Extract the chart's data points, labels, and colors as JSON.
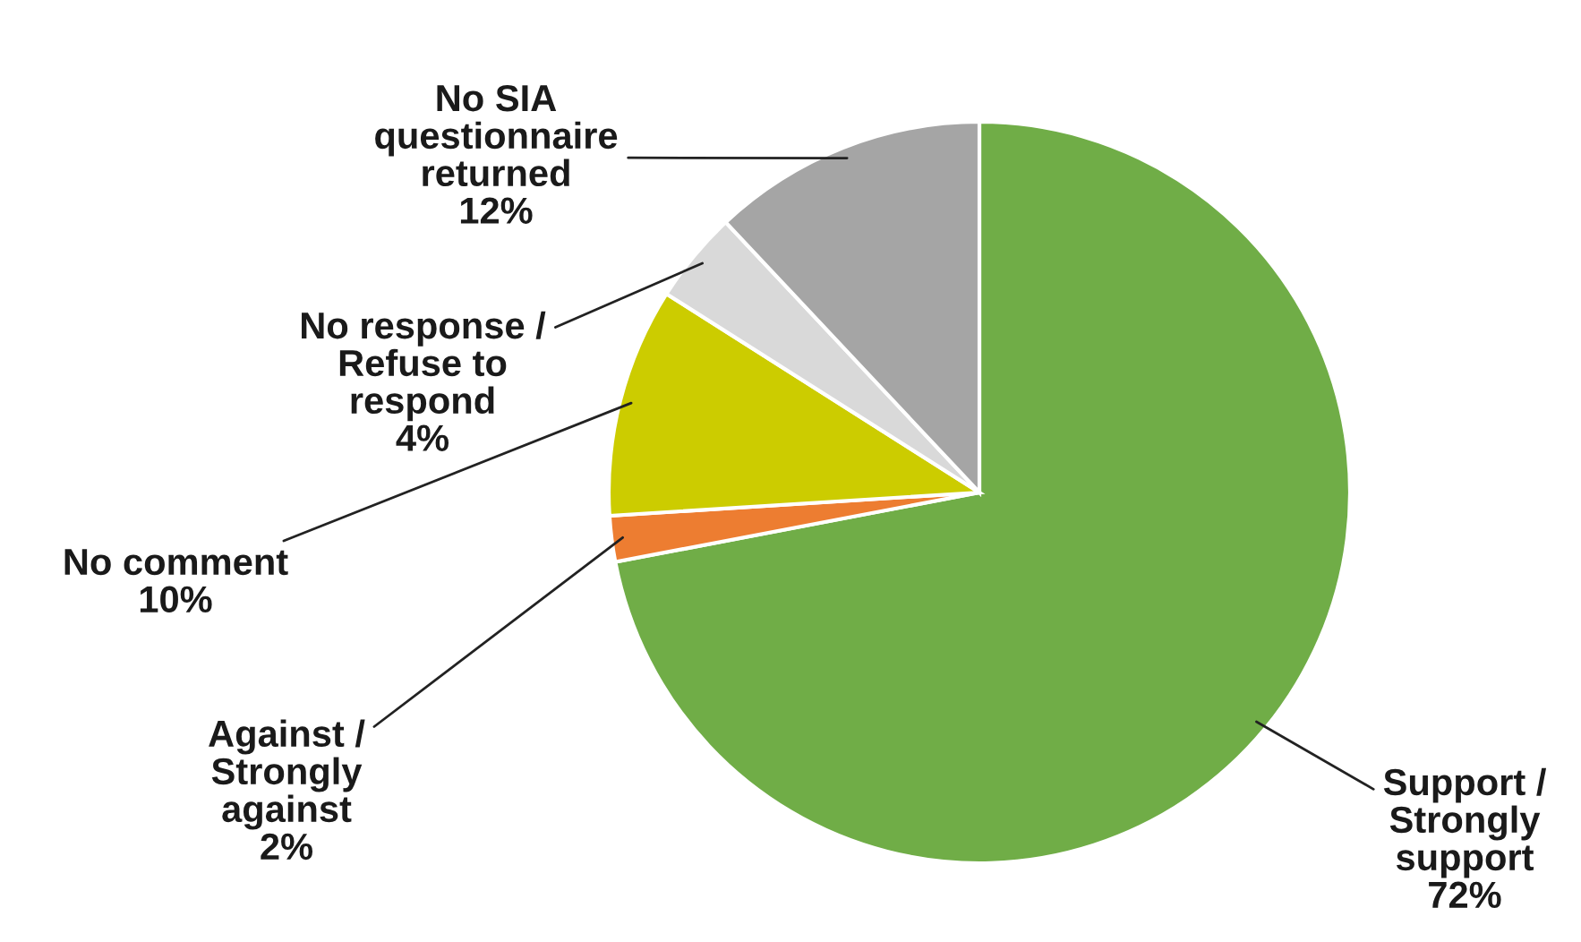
{
  "chart_data": {
    "type": "pie",
    "categories": [
      "Support / Strongly support",
      "Against / Strongly against",
      "No comment",
      "No response / Refuse to respond",
      "No SIA questionnaire returned"
    ],
    "values": [
      72,
      2,
      10,
      4,
      12
    ],
    "value_labels": [
      "72%",
      "2%",
      "10%",
      "4%",
      "12%"
    ],
    "colors": [
      "#70ad47",
      "#ed7d31",
      "#cccc00",
      "#d9d9d9",
      "#a5a5a5"
    ],
    "legend": false
  }
}
